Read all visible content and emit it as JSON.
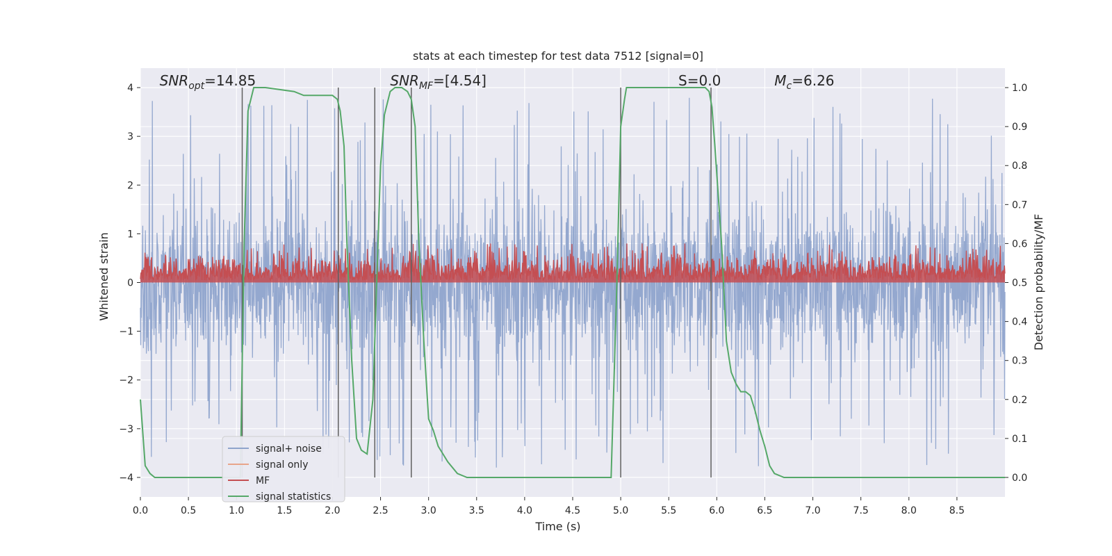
{
  "chart_data": {
    "type": "line",
    "title": "stats at each timestep for test data 7512 [signal=0]",
    "xlabel": "Time (s)",
    "ylabel_left": "Whitened strain",
    "ylabel_right": "Detection probability/MF",
    "xlim": [
      0.0,
      9.0
    ],
    "ylim_left": [
      -4.4,
      4.4
    ],
    "ylim_right": [
      -0.05,
      1.05
    ],
    "grid": true,
    "xticks": [
      0.0,
      0.5,
      1.0,
      1.5,
      2.0,
      2.5,
      3.0,
      3.5,
      4.0,
      4.5,
      5.0,
      5.5,
      6.0,
      6.5,
      7.0,
      7.5,
      8.0,
      8.5
    ],
    "xtick_labels": [
      "0.0",
      "0.5",
      "1.0",
      "1.5",
      "2.0",
      "2.5",
      "3.0",
      "3.5",
      "4.0",
      "4.5",
      "5.0",
      "5.5",
      "6.0",
      "6.5",
      "7.0",
      "7.5",
      "8.0",
      "8.5"
    ],
    "yticks_left": [
      -4,
      -3,
      -2,
      -1,
      0,
      1,
      2,
      3,
      4
    ],
    "ytick_labels_left": [
      "−4",
      "−3",
      "−2",
      "−1",
      "0",
      "1",
      "2",
      "3",
      "4"
    ],
    "yticks_right": [
      0.0,
      0.1,
      0.2,
      0.3,
      0.4,
      0.5,
      0.6,
      0.7,
      0.8,
      0.9,
      1.0
    ],
    "ytick_labels_right": [
      "0.0",
      "0.1",
      "0.2",
      "0.3",
      "0.4",
      "0.5",
      "0.6",
      "0.7",
      "0.8",
      "0.9",
      "1.0"
    ],
    "annotations": [
      {
        "text": "SNR_opt=14.85",
        "x": 0.2,
        "y": 4.1
      },
      {
        "text": "SNR_MF=[4.54]",
        "x": 2.6,
        "y": 4.1
      },
      {
        "text": "S=0.0",
        "x": 5.6,
        "y": 4.1
      },
      {
        "text": "M_c=6.26",
        "x": 6.6,
        "y": 4.1
      }
    ],
    "vertical_markers_s": [
      1.06,
      2.06,
      2.44,
      2.82,
      5.0,
      5.94
    ],
    "series": [
      {
        "name": "signal+ noise",
        "axis": "left",
        "color": "#8fa4cc",
        "noise_sigma": 0.8,
        "peak_range": [
          -4.0,
          3.9
        ]
      },
      {
        "name": "signal only",
        "axis": "left",
        "color": "#e8a58a",
        "values": []
      },
      {
        "name": "MF",
        "axis": "right",
        "color": "#c44e52",
        "baseline": 0.5,
        "max": 0.6,
        "typical_range": [
          0.52,
          0.59
        ]
      },
      {
        "name": "signal statistics",
        "axis": "right",
        "color": "#55a868",
        "x": [
          0.0,
          0.05,
          0.1,
          0.15,
          0.2,
          0.3,
          0.5,
          0.7,
          1.0,
          1.04,
          1.08,
          1.12,
          1.18,
          1.3,
          1.6,
          1.7,
          1.8,
          1.9,
          2.0,
          2.05,
          2.08,
          2.12,
          2.15,
          2.2,
          2.25,
          2.3,
          2.36,
          2.42,
          2.46,
          2.5,
          2.54,
          2.6,
          2.65,
          2.72,
          2.78,
          2.82,
          2.86,
          2.9,
          2.95,
          3.0,
          3.05,
          3.1,
          3.2,
          3.3,
          3.4,
          4.9,
          4.96,
          5.0,
          5.04,
          5.06,
          5.1,
          5.8,
          5.88,
          5.92,
          5.95,
          5.98,
          6.05,
          6.1,
          6.15,
          6.2,
          6.25,
          6.3,
          6.35,
          6.4,
          6.45,
          6.5,
          6.55,
          6.6,
          6.7,
          9.0
        ],
        "y": [
          0.2,
          0.03,
          0.01,
          0.0,
          0.0,
          0.0,
          0.0,
          0.0,
          0.0,
          0.0,
          0.6,
          0.94,
          1.0,
          1.0,
          0.99,
          0.98,
          0.98,
          0.98,
          0.98,
          0.97,
          0.94,
          0.85,
          0.6,
          0.3,
          0.1,
          0.07,
          0.06,
          0.2,
          0.5,
          0.8,
          0.93,
          0.99,
          1.0,
          1.0,
          0.99,
          0.97,
          0.9,
          0.6,
          0.35,
          0.15,
          0.12,
          0.08,
          0.04,
          0.01,
          0.0,
          0.0,
          0.5,
          0.9,
          0.97,
          1.0,
          1.0,
          1.0,
          1.0,
          0.99,
          0.95,
          0.85,
          0.6,
          0.35,
          0.27,
          0.24,
          0.22,
          0.22,
          0.21,
          0.17,
          0.12,
          0.08,
          0.03,
          0.01,
          0.0,
          0.0
        ]
      }
    ],
    "legend": {
      "placement": "lower-left",
      "entries": [
        "signal+ noise",
        "signal only",
        "MF",
        "signal statistics"
      ]
    }
  },
  "colors": {
    "background_plot": "#eaeaf2",
    "grid": "#ffffff",
    "marker_line": "#606060"
  }
}
